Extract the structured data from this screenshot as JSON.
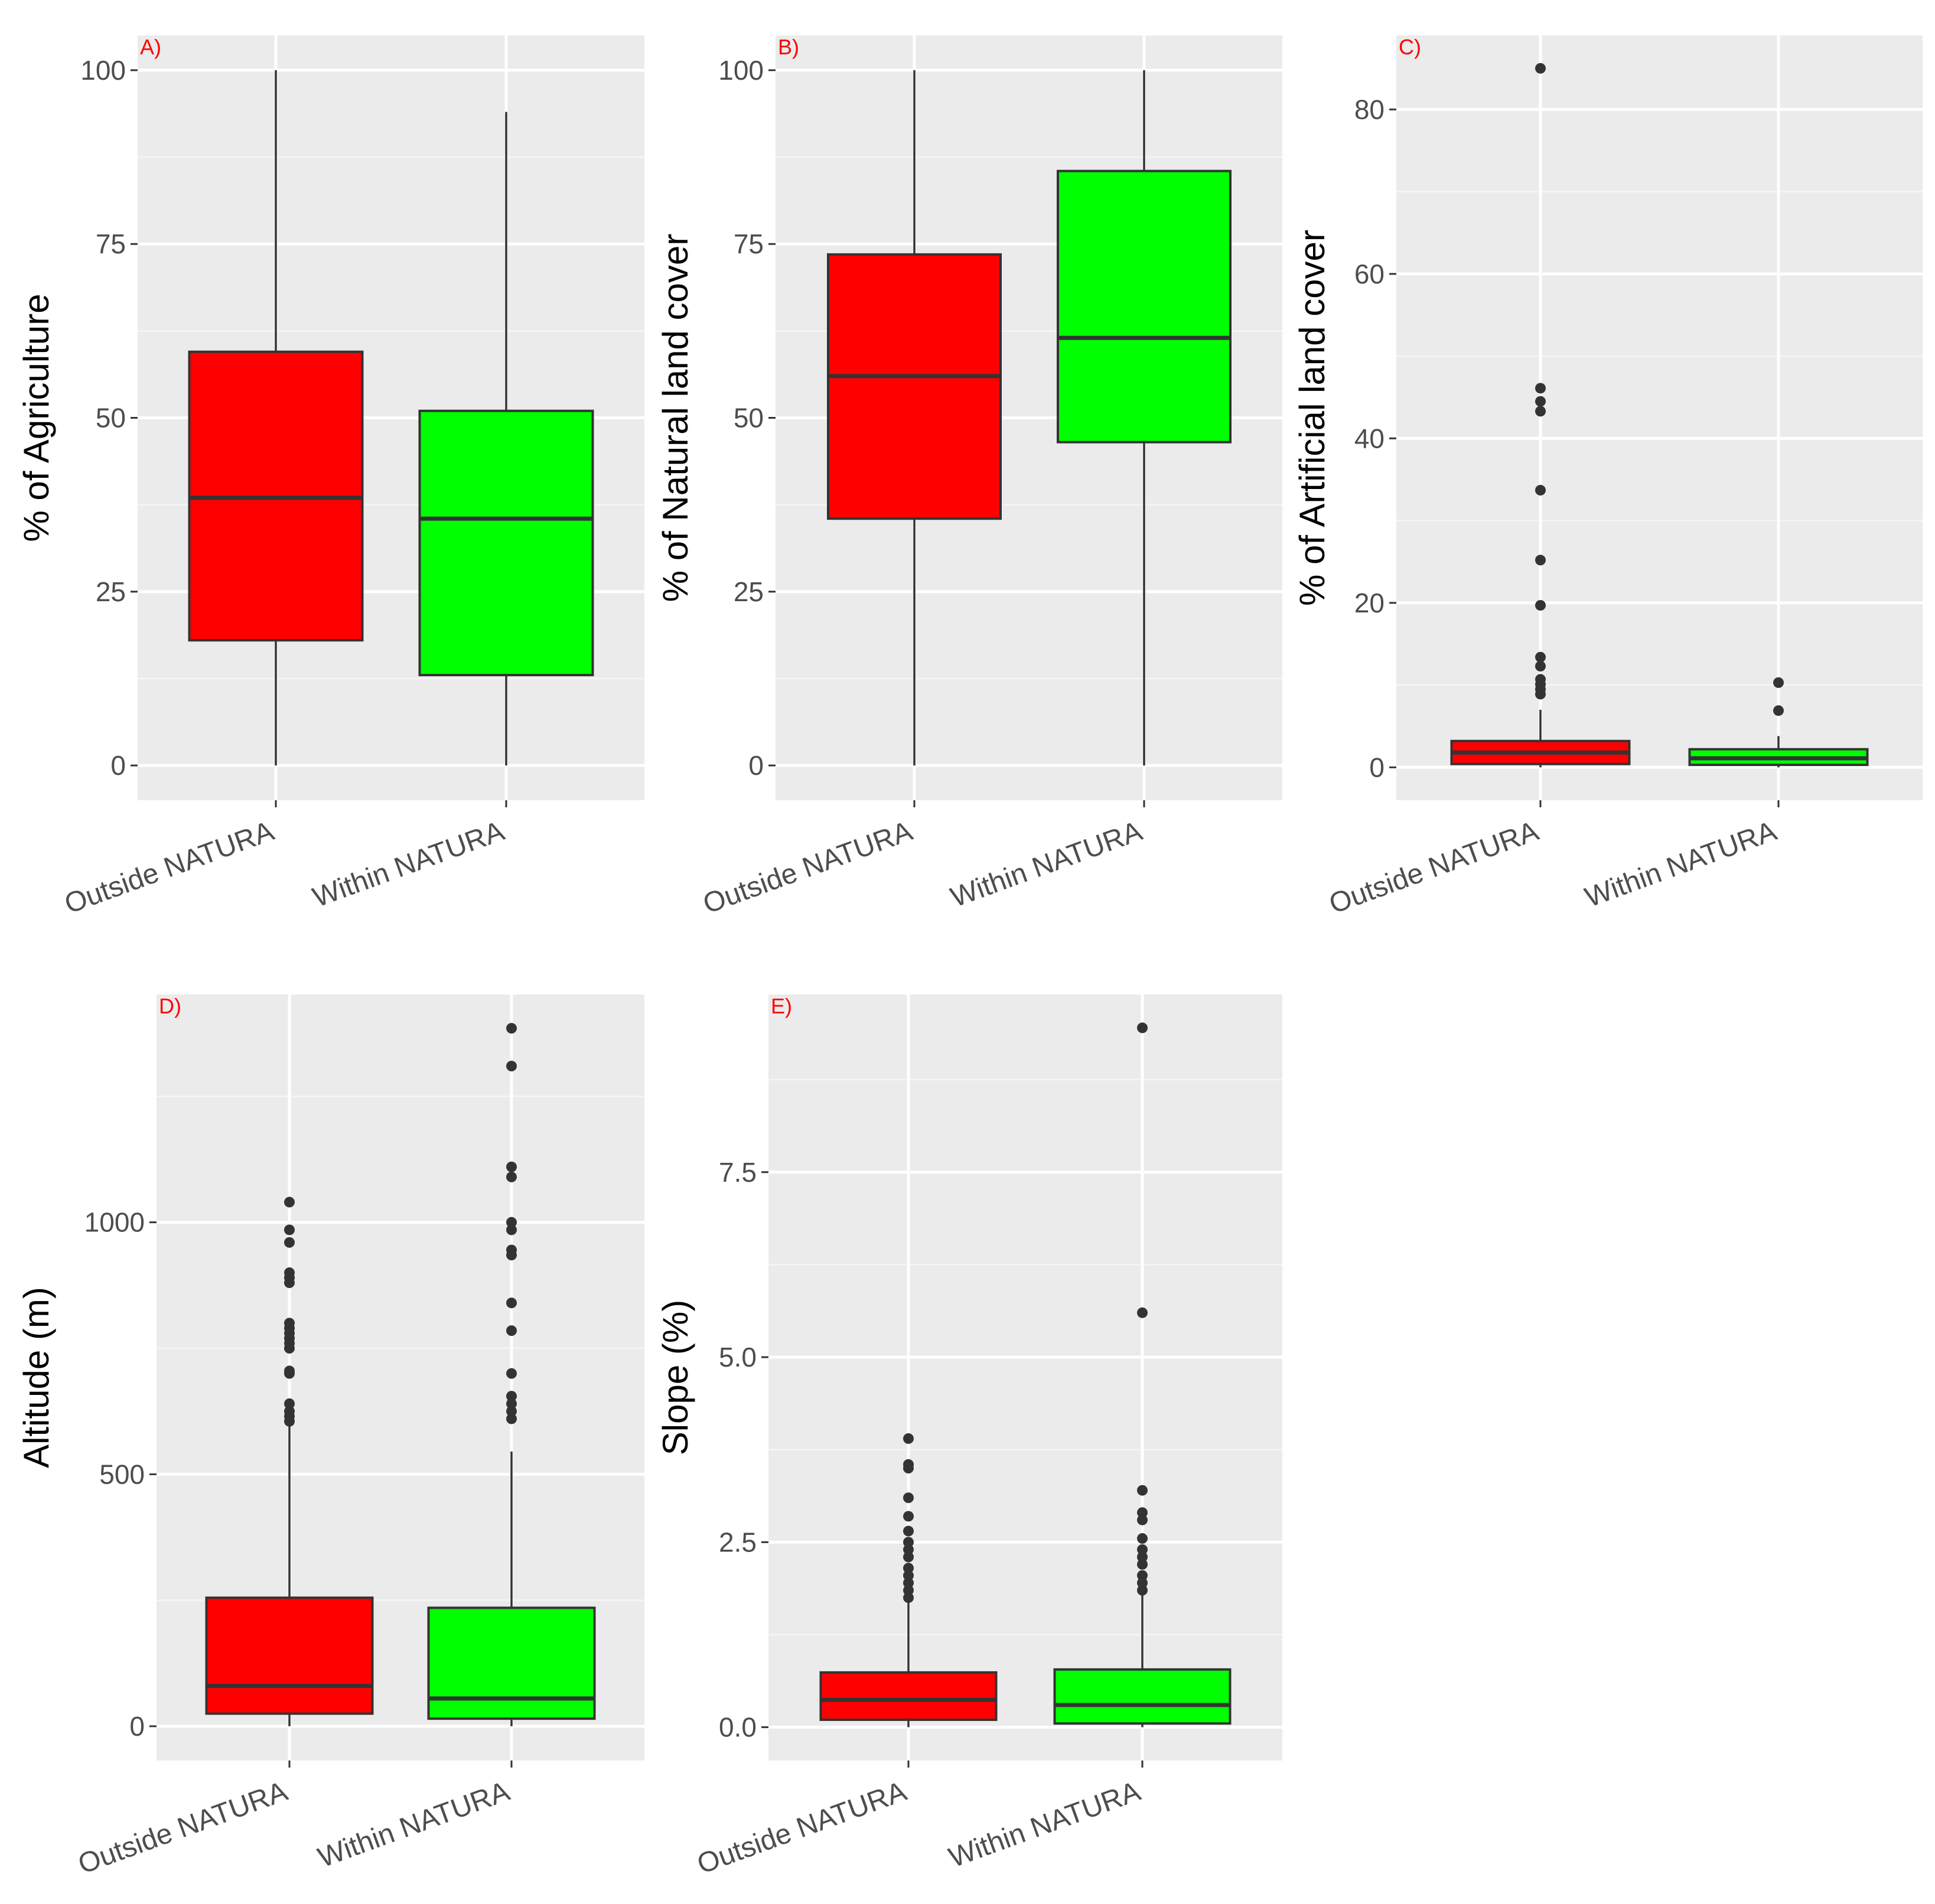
{
  "colors": {
    "panel_bg": "#EBEBEB",
    "grid_major": "#FFFFFF",
    "grid_minor": "#F5F5F5",
    "outside_fill": "#FF0000",
    "within_fill": "#00FF00",
    "box_line": "#333333",
    "tick_text": "#4D4D4D",
    "axis_title": "#000000",
    "panel_label": "#FF0000"
  },
  "chart_data": [
    {
      "id": "A",
      "panel_label": "A)",
      "type": "box",
      "ylabel": "% of Agriculture",
      "categories": [
        "Outside NATURA",
        "Within NATURA"
      ],
      "ylim": [
        -5,
        105
      ],
      "yticks": [
        0,
        25,
        50,
        75,
        100
      ],
      "ytick_labels": [
        "0",
        "25",
        "50",
        "75",
        "100"
      ],
      "series": [
        {
          "name": "Outside NATURA",
          "min": 0,
          "q1": 18,
          "median": 38.5,
          "q3": 59.5,
          "max": 100,
          "outliers": []
        },
        {
          "name": "Within NATURA",
          "min": 0,
          "q1": 13,
          "median": 35.5,
          "q3": 51,
          "max": 94,
          "outliers": []
        }
      ]
    },
    {
      "id": "B",
      "panel_label": "B)",
      "type": "box",
      "ylabel": "% of Natural land cover",
      "categories": [
        "Outside NATURA",
        "Within NATURA"
      ],
      "ylim": [
        -5,
        105
      ],
      "yticks": [
        0,
        25,
        50,
        75,
        100
      ],
      "ytick_labels": [
        "0",
        "25",
        "50",
        "75",
        "100"
      ],
      "series": [
        {
          "name": "Outside NATURA",
          "min": 0,
          "q1": 35.5,
          "median": 56,
          "q3": 73.5,
          "max": 100,
          "outliers": []
        },
        {
          "name": "Within NATURA",
          "min": 0,
          "q1": 46.5,
          "median": 61.5,
          "q3": 85.5,
          "max": 100,
          "outliers": []
        }
      ]
    },
    {
      "id": "C",
      "panel_label": "C)",
      "type": "box",
      "ylabel": "% of Artificial land cover",
      "categories": [
        "Outside NATURA",
        "Within NATURA"
      ],
      "ylim": [
        -4,
        89
      ],
      "yticks": [
        0,
        20,
        40,
        60,
        80
      ],
      "ytick_labels": [
        "0",
        "20",
        "40",
        "60",
        "80"
      ],
      "series": [
        {
          "name": "Outside NATURA",
          "min": 0,
          "q1": 0.4,
          "median": 1.8,
          "q3": 3.2,
          "max": 7,
          "outliers": [
            8.9,
            9.5,
            10.1,
            10.7,
            12.3,
            13.4,
            19.7,
            25.2,
            33.7,
            43.3,
            44.5,
            46.1,
            85
          ]
        },
        {
          "name": "Within NATURA",
          "min": 0,
          "q1": 0.3,
          "median": 1.1,
          "q3": 2.2,
          "max": 3.8,
          "outliers": [
            6.9,
            10.3
          ]
        }
      ]
    },
    {
      "id": "D",
      "panel_label": "D)",
      "type": "box",
      "ylabel": "Altitude (m)",
      "categories": [
        "Outside NATURA",
        "Within NATURA"
      ],
      "ylim": [
        -68,
        1452
      ],
      "yticks": [
        0,
        500,
        1000
      ],
      "ytick_labels": [
        "0",
        "500",
        "1000"
      ],
      "series": [
        {
          "name": "Outside NATURA",
          "min": 0,
          "q1": 25,
          "median": 80,
          "q3": 255,
          "max": 595,
          "outliers": [
            605,
            615,
            625,
            640,
            700,
            705,
            750,
            760,
            770,
            780,
            790,
            800,
            880,
            890,
            900,
            960,
            985,
            1040
          ]
        },
        {
          "name": "Within NATURA",
          "min": 0,
          "q1": 15,
          "median": 55,
          "q3": 235,
          "max": 545,
          "outliers": [
            610,
            625,
            640,
            655,
            700,
            785,
            840,
            935,
            945,
            985,
            1000,
            1090,
            1110,
            1310,
            1385
          ]
        }
      ]
    },
    {
      "id": "E",
      "panel_label": "E)",
      "type": "box",
      "ylabel": "Slope (%)",
      "categories": [
        "Outside NATURA",
        "Within NATURA"
      ],
      "ylim": [
        -0.45,
        9.9
      ],
      "yticks": [
        0.0,
        2.5,
        5.0,
        7.5
      ],
      "ytick_labels": [
        "0.0",
        "2.5",
        "5.0",
        "7.5"
      ],
      "series": [
        {
          "name": "Outside NATURA",
          "min": 0,
          "q1": 0.1,
          "median": 0.37,
          "q3": 0.74,
          "max": 1.68,
          "outliers": [
            1.75,
            1.85,
            1.95,
            2.05,
            2.15,
            2.3,
            2.4,
            2.5,
            2.65,
            2.85,
            3.1,
            3.5,
            3.55,
            3.9
          ]
        },
        {
          "name": "Within NATURA",
          "min": 0,
          "q1": 0.05,
          "median": 0.3,
          "q3": 0.78,
          "max": 1.8,
          "outliers": [
            1.85,
            1.95,
            2.05,
            2.2,
            2.3,
            2.4,
            2.55,
            2.8,
            2.9,
            3.2,
            5.6,
            9.45
          ]
        }
      ]
    }
  ]
}
